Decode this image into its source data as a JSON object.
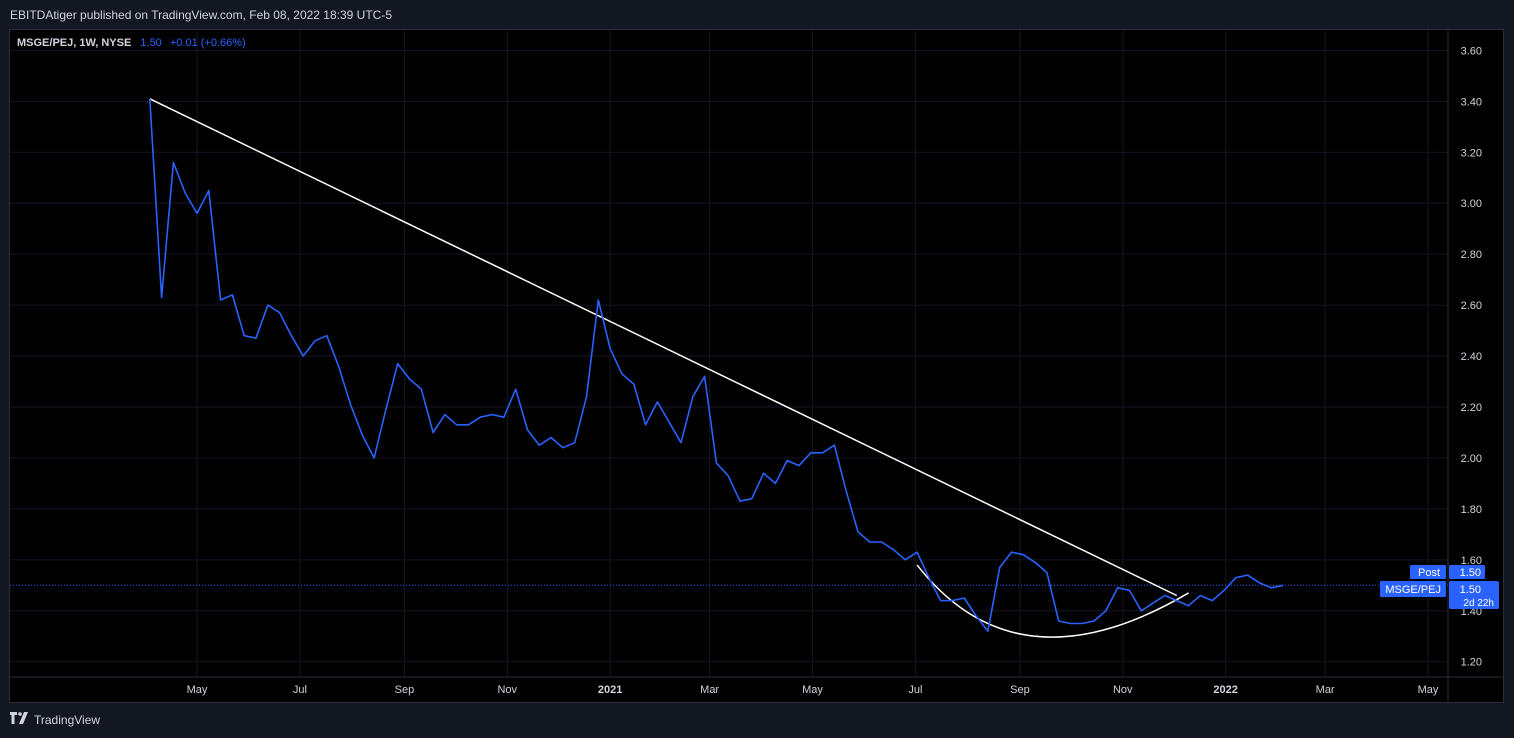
{
  "header": {
    "text": "EBITDAtiger published on TradingView.com, Feb 08, 2022 18:39 UTC-5"
  },
  "legend": {
    "symbol": "MSGE/PEJ, 1W, NYSE",
    "value": "1.50",
    "change": "+0.01 (+0.66%)"
  },
  "footer": {
    "brand": "TradingView",
    "logo_icon": "tradingview-logo-icon"
  },
  "colors": {
    "series": "#2962ff",
    "trendline": "#ffffff",
    "background": "#000000",
    "grid": "#131722",
    "label_bg": "#2962ff"
  },
  "price_labels": {
    "post_label": "Post",
    "post_value": "1.50",
    "symbol_label": "MSGE/PEJ",
    "symbol_value": "1.50",
    "countdown": "2d 22h"
  },
  "chart_data": {
    "type": "line",
    "title": "",
    "xlabel": "",
    "ylabel": "",
    "ylim": [
      1.14,
      3.68
    ],
    "x_ticks": [
      "May",
      "Jul",
      "Sep",
      "Nov",
      "2021",
      "Mar",
      "May",
      "Jul",
      "Sep",
      "Nov",
      "2022",
      "Mar",
      "May"
    ],
    "y_ticks": [
      "1.20",
      "1.40",
      "1.60",
      "1.80",
      "2.00",
      "2.20",
      "2.40",
      "2.60",
      "2.80",
      "3.00",
      "3.20",
      "3.40",
      "3.60"
    ],
    "grid": true,
    "series": [
      {
        "name": "MSGE/PEJ",
        "x": [
          "2020-04-03",
          "2020-04-10",
          "2020-04-17",
          "2020-04-24",
          "2020-05-01",
          "2020-05-08",
          "2020-05-15",
          "2020-05-22",
          "2020-05-29",
          "2020-06-05",
          "2020-06-12",
          "2020-06-19",
          "2020-06-26",
          "2020-07-03",
          "2020-07-10",
          "2020-07-17",
          "2020-07-24",
          "2020-07-31",
          "2020-08-07",
          "2020-08-14",
          "2020-08-21",
          "2020-08-28",
          "2020-09-04",
          "2020-09-11",
          "2020-09-18",
          "2020-09-25",
          "2020-10-02",
          "2020-10-09",
          "2020-10-16",
          "2020-10-23",
          "2020-10-30",
          "2020-11-06",
          "2020-11-13",
          "2020-11-20",
          "2020-11-27",
          "2020-12-04",
          "2020-12-11",
          "2020-12-18",
          "2020-12-25",
          "2021-01-01",
          "2021-01-08",
          "2021-01-15",
          "2021-01-22",
          "2021-01-29",
          "2021-02-05",
          "2021-02-12",
          "2021-02-19",
          "2021-02-26",
          "2021-03-05",
          "2021-03-12",
          "2021-03-19",
          "2021-03-26",
          "2021-04-02",
          "2021-04-09",
          "2021-04-16",
          "2021-04-23",
          "2021-04-30",
          "2021-05-07",
          "2021-05-14",
          "2021-05-21",
          "2021-05-28",
          "2021-06-04",
          "2021-06-11",
          "2021-06-18",
          "2021-06-25",
          "2021-07-02",
          "2021-07-09",
          "2021-07-16",
          "2021-07-23",
          "2021-07-30",
          "2021-08-06",
          "2021-08-13",
          "2021-08-20",
          "2021-08-27",
          "2021-09-03",
          "2021-09-10",
          "2021-09-17",
          "2021-09-24",
          "2021-10-01",
          "2021-10-08",
          "2021-10-15",
          "2021-10-22",
          "2021-10-29",
          "2021-11-05",
          "2021-11-12",
          "2021-11-19",
          "2021-11-26",
          "2021-12-03",
          "2021-12-10",
          "2021-12-17",
          "2021-12-24",
          "2021-12-31",
          "2022-01-07",
          "2022-01-14",
          "2022-01-21",
          "2022-01-28",
          "2022-02-04"
        ],
        "values": [
          3.41,
          2.63,
          3.16,
          3.04,
          2.96,
          3.05,
          2.62,
          2.64,
          2.48,
          2.47,
          2.6,
          2.57,
          2.48,
          2.4,
          2.46,
          2.48,
          2.36,
          2.21,
          2.09,
          2.0,
          2.19,
          2.37,
          2.31,
          2.27,
          2.1,
          2.17,
          2.13,
          2.13,
          2.16,
          2.17,
          2.16,
          2.27,
          2.11,
          2.05,
          2.08,
          2.04,
          2.06,
          2.24,
          2.62,
          2.43,
          2.33,
          2.29,
          2.13,
          2.22,
          2.14,
          2.06,
          2.24,
          2.32,
          1.98,
          1.93,
          1.83,
          1.84,
          1.94,
          1.9,
          1.99,
          1.97,
          2.02,
          2.02,
          2.05,
          1.87,
          1.71,
          1.67,
          1.67,
          1.64,
          1.6,
          1.63,
          1.53,
          1.44,
          1.44,
          1.45,
          1.38,
          1.32,
          1.57,
          1.63,
          1.62,
          1.59,
          1.55,
          1.36,
          1.35,
          1.35,
          1.36,
          1.4,
          1.49,
          1.48,
          1.4,
          1.43,
          1.46,
          1.44,
          1.42,
          1.46,
          1.44,
          1.48,
          1.53,
          1.54,
          1.51,
          1.49,
          1.5
        ]
      }
    ],
    "last_value": 1.5,
    "annotations": {
      "trendline": {
        "from": {
          "x": "2020-04-03",
          "y": 3.41
        },
        "to": {
          "x": "2021-12-03",
          "y": 1.46
        }
      },
      "arc": [
        {
          "x": "2021-07-02",
          "y": 1.58
        },
        {
          "x": "2021-09-10",
          "y": 1.3
        },
        {
          "x": "2021-12-10",
          "y": 1.47
        }
      ]
    }
  }
}
